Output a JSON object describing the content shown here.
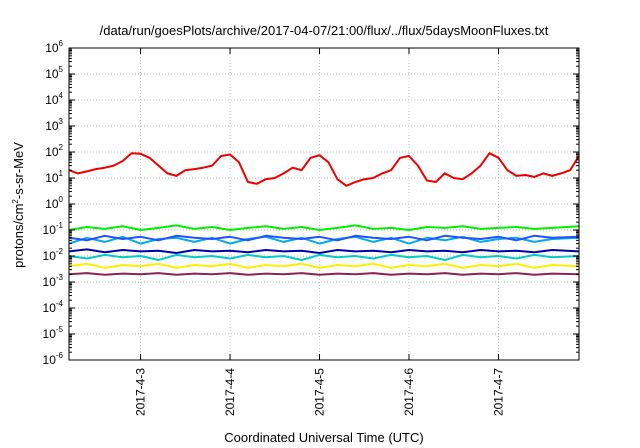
{
  "chart_data": {
    "type": "line",
    "title": "/data/run/goesPlots/archive/2017-04-07/21:00/flux/../flux/5daysMoonFluxes.txt",
    "xlabel": "Coordinated Universal Time (UTC)",
    "ylabel": {
      "prefix": "protons/cm",
      "superscript": "2",
      "suffix": "-s-sr-MeV"
    },
    "yscale": "log",
    "ylim_exponent": [
      -6,
      6
    ],
    "y_ticks": [
      {
        "base": "10",
        "exp": "-6",
        "value": -6
      },
      {
        "base": "10",
        "exp": "-5",
        "value": -5
      },
      {
        "base": "10",
        "exp": "-4",
        "value": -4
      },
      {
        "base": "10",
        "exp": "-3",
        "value": -3
      },
      {
        "base": "10",
        "exp": "-2",
        "value": -2
      },
      {
        "base": "10",
        "exp": "-1",
        "value": -1
      },
      {
        "base": "10",
        "exp": "0",
        "value": 0
      },
      {
        "base": "10",
        "exp": "1",
        "value": 1
      },
      {
        "base": "10",
        "exp": "2",
        "value": 2
      },
      {
        "base": "10",
        "exp": "3",
        "value": 3
      },
      {
        "base": "10",
        "exp": "4",
        "value": 4
      },
      {
        "base": "10",
        "exp": "5",
        "value": 5
      },
      {
        "base": "10",
        "exp": "6",
        "value": 6
      }
    ],
    "x_ticks": [
      {
        "label": "2017-4-3",
        "day": 3
      },
      {
        "label": "2017-4-4",
        "day": 4
      },
      {
        "label": "2017-4-5",
        "day": 5
      },
      {
        "label": "2017-4-6",
        "day": 6
      },
      {
        "label": "2017-4-7",
        "day": 7
      }
    ],
    "xlim_day": [
      2.2,
      7.9
    ],
    "grid": true,
    "series": [
      {
        "color": "#ee0000",
        "points": [
          [
            2.2,
            20
          ],
          [
            2.3,
            15
          ],
          [
            2.4,
            18
          ],
          [
            2.5,
            22
          ],
          [
            2.6,
            25
          ],
          [
            2.7,
            30
          ],
          [
            2.8,
            45
          ],
          [
            2.9,
            90
          ],
          [
            3.0,
            85
          ],
          [
            3.1,
            60
          ],
          [
            3.2,
            30
          ],
          [
            3.3,
            15
          ],
          [
            3.4,
            12
          ],
          [
            3.5,
            20
          ],
          [
            3.6,
            22
          ],
          [
            3.7,
            25
          ],
          [
            3.8,
            30
          ],
          [
            3.9,
            70
          ],
          [
            4.0,
            80
          ],
          [
            4.1,
            40
          ],
          [
            4.2,
            7
          ],
          [
            4.3,
            6
          ],
          [
            4.4,
            9
          ],
          [
            4.5,
            10
          ],
          [
            4.6,
            15
          ],
          [
            4.7,
            25
          ],
          [
            4.8,
            20
          ],
          [
            4.9,
            60
          ],
          [
            5.0,
            75
          ],
          [
            5.1,
            40
          ],
          [
            5.2,
            9
          ],
          [
            5.3,
            5
          ],
          [
            5.4,
            7
          ],
          [
            5.5,
            9
          ],
          [
            5.6,
            10
          ],
          [
            5.7,
            15
          ],
          [
            5.8,
            20
          ],
          [
            5.9,
            60
          ],
          [
            6.0,
            70
          ],
          [
            6.1,
            30
          ],
          [
            6.2,
            8
          ],
          [
            6.3,
            7
          ],
          [
            6.4,
            15
          ],
          [
            6.5,
            10
          ],
          [
            6.6,
            9
          ],
          [
            6.7,
            15
          ],
          [
            6.8,
            30
          ],
          [
            6.9,
            90
          ],
          [
            7.0,
            60
          ],
          [
            7.1,
            20
          ],
          [
            7.2,
            12
          ],
          [
            7.3,
            13
          ],
          [
            7.4,
            11
          ],
          [
            7.5,
            15
          ],
          [
            7.6,
            12
          ],
          [
            7.7,
            15
          ],
          [
            7.8,
            20
          ],
          [
            7.9,
            70
          ]
        ]
      },
      {
        "color": "#00ee00",
        "points": [
          [
            2.2,
            0.1
          ],
          [
            2.4,
            0.13
          ],
          [
            2.6,
            0.11
          ],
          [
            2.8,
            0.14
          ],
          [
            3.0,
            0.1
          ],
          [
            3.2,
            0.12
          ],
          [
            3.4,
            0.15
          ],
          [
            3.6,
            0.11
          ],
          [
            3.8,
            0.13
          ],
          [
            4.0,
            0.1
          ],
          [
            4.2,
            0.12
          ],
          [
            4.4,
            0.14
          ],
          [
            4.6,
            0.11
          ],
          [
            4.8,
            0.13
          ],
          [
            5.0,
            0.1
          ],
          [
            5.2,
            0.12
          ],
          [
            5.4,
            0.15
          ],
          [
            5.6,
            0.11
          ],
          [
            5.8,
            0.12
          ],
          [
            6.0,
            0.1
          ],
          [
            6.2,
            0.13
          ],
          [
            6.4,
            0.12
          ],
          [
            6.6,
            0.14
          ],
          [
            6.8,
            0.11
          ],
          [
            7.0,
            0.12
          ],
          [
            7.2,
            0.13
          ],
          [
            7.4,
            0.11
          ],
          [
            7.6,
            0.12
          ],
          [
            7.9,
            0.14
          ]
        ]
      },
      {
        "color": "#00aaee",
        "points": [
          [
            2.2,
            0.03
          ],
          [
            2.4,
            0.05
          ],
          [
            2.6,
            0.035
          ],
          [
            2.8,
            0.055
          ],
          [
            3.0,
            0.03
          ],
          [
            3.2,
            0.045
          ],
          [
            3.4,
            0.05
          ],
          [
            3.6,
            0.035
          ],
          [
            3.8,
            0.05
          ],
          [
            4.0,
            0.03
          ],
          [
            4.2,
            0.045
          ],
          [
            4.4,
            0.055
          ],
          [
            4.6,
            0.035
          ],
          [
            4.8,
            0.05
          ],
          [
            5.0,
            0.03
          ],
          [
            5.2,
            0.045
          ],
          [
            5.4,
            0.055
          ],
          [
            5.6,
            0.035
          ],
          [
            5.8,
            0.05
          ],
          [
            6.0,
            0.03
          ],
          [
            6.2,
            0.05
          ],
          [
            6.4,
            0.04
          ],
          [
            6.6,
            0.055
          ],
          [
            6.8,
            0.035
          ],
          [
            7.0,
            0.045
          ],
          [
            7.2,
            0.05
          ],
          [
            7.4,
            0.035
          ],
          [
            7.6,
            0.045
          ],
          [
            7.9,
            0.05
          ]
        ]
      },
      {
        "color": "#2050ff",
        "points": [
          [
            2.2,
            0.05
          ],
          [
            2.4,
            0.04
          ],
          [
            2.6,
            0.06
          ],
          [
            2.8,
            0.045
          ],
          [
            3.0,
            0.055
          ],
          [
            3.2,
            0.04
          ],
          [
            3.4,
            0.06
          ],
          [
            3.6,
            0.05
          ],
          [
            3.8,
            0.045
          ],
          [
            4.0,
            0.055
          ],
          [
            4.2,
            0.04
          ],
          [
            4.4,
            0.06
          ],
          [
            4.6,
            0.05
          ],
          [
            4.8,
            0.045
          ],
          [
            5.0,
            0.055
          ],
          [
            5.2,
            0.04
          ],
          [
            5.4,
            0.06
          ],
          [
            5.6,
            0.05
          ],
          [
            5.8,
            0.045
          ],
          [
            6.0,
            0.055
          ],
          [
            6.2,
            0.04
          ],
          [
            6.4,
            0.06
          ],
          [
            6.6,
            0.05
          ],
          [
            6.8,
            0.045
          ],
          [
            7.0,
            0.055
          ],
          [
            7.2,
            0.04
          ],
          [
            7.4,
            0.06
          ],
          [
            7.6,
            0.05
          ],
          [
            7.9,
            0.055
          ]
        ]
      },
      {
        "color": "#0000aa",
        "points": [
          [
            2.2,
            0.015
          ],
          [
            2.4,
            0.018
          ],
          [
            2.6,
            0.014
          ],
          [
            2.8,
            0.017
          ],
          [
            3.0,
            0.015
          ],
          [
            3.2,
            0.016
          ],
          [
            3.4,
            0.013
          ],
          [
            3.6,
            0.017
          ],
          [
            3.8,
            0.015
          ],
          [
            4.0,
            0.016
          ],
          [
            4.2,
            0.014
          ],
          [
            4.4,
            0.017
          ],
          [
            4.6,
            0.015
          ],
          [
            4.8,
            0.016
          ],
          [
            5.0,
            0.013
          ],
          [
            5.2,
            0.017
          ],
          [
            5.4,
            0.015
          ],
          [
            5.6,
            0.016
          ],
          [
            5.8,
            0.014
          ],
          [
            6.0,
            0.017
          ],
          [
            6.2,
            0.015
          ],
          [
            6.4,
            0.016
          ],
          [
            6.6,
            0.014
          ],
          [
            6.8,
            0.017
          ],
          [
            7.0,
            0.015
          ],
          [
            7.2,
            0.016
          ],
          [
            7.4,
            0.014
          ],
          [
            7.6,
            0.017
          ],
          [
            7.9,
            0.015
          ]
        ]
      },
      {
        "color": "#00cccc",
        "points": [
          [
            2.2,
            0.01
          ],
          [
            2.4,
            0.008
          ],
          [
            2.6,
            0.011
          ],
          [
            2.8,
            0.009
          ],
          [
            3.0,
            0.01
          ],
          [
            3.2,
            0.007
          ],
          [
            3.4,
            0.011
          ],
          [
            3.6,
            0.009
          ],
          [
            3.8,
            0.01
          ],
          [
            4.0,
            0.008
          ],
          [
            4.2,
            0.011
          ],
          [
            4.4,
            0.009
          ],
          [
            4.6,
            0.01
          ],
          [
            4.8,
            0.007
          ],
          [
            5.0,
            0.011
          ],
          [
            5.2,
            0.009
          ],
          [
            5.4,
            0.01
          ],
          [
            5.6,
            0.008
          ],
          [
            5.8,
            0.011
          ],
          [
            6.0,
            0.009
          ],
          [
            6.2,
            0.01
          ],
          [
            6.4,
            0.007
          ],
          [
            6.6,
            0.011
          ],
          [
            6.8,
            0.009
          ],
          [
            7.0,
            0.01
          ],
          [
            7.2,
            0.008
          ],
          [
            7.4,
            0.011
          ],
          [
            7.6,
            0.009
          ],
          [
            7.9,
            0.01
          ]
        ]
      },
      {
        "color": "#ffee00",
        "points": [
          [
            2.2,
            0.004
          ],
          [
            2.4,
            0.005
          ],
          [
            2.6,
            0.0035
          ],
          [
            2.8,
            0.0045
          ],
          [
            3.0,
            0.004
          ],
          [
            3.2,
            0.005
          ],
          [
            3.4,
            0.0035
          ],
          [
            3.6,
            0.0045
          ],
          [
            3.8,
            0.004
          ],
          [
            4.0,
            0.005
          ],
          [
            4.2,
            0.0035
          ],
          [
            4.4,
            0.0045
          ],
          [
            4.6,
            0.004
          ],
          [
            4.8,
            0.005
          ],
          [
            5.0,
            0.0035
          ],
          [
            5.2,
            0.0045
          ],
          [
            5.4,
            0.004
          ],
          [
            5.6,
            0.005
          ],
          [
            5.8,
            0.0035
          ],
          [
            6.0,
            0.0045
          ],
          [
            6.2,
            0.004
          ],
          [
            6.4,
            0.005
          ],
          [
            6.6,
            0.0035
          ],
          [
            6.8,
            0.0045
          ],
          [
            7.0,
            0.004
          ],
          [
            7.2,
            0.005
          ],
          [
            7.4,
            0.0035
          ],
          [
            7.6,
            0.0045
          ],
          [
            7.9,
            0.004
          ]
        ]
      },
      {
        "color": "#8b2252",
        "points": [
          [
            2.2,
            0.002
          ],
          [
            2.4,
            0.0022
          ],
          [
            2.6,
            0.0019
          ],
          [
            2.8,
            0.0021
          ],
          [
            3.0,
            0.002
          ],
          [
            3.2,
            0.0022
          ],
          [
            3.4,
            0.0019
          ],
          [
            3.6,
            0.0021
          ],
          [
            3.8,
            0.002
          ],
          [
            4.0,
            0.0022
          ],
          [
            4.2,
            0.0019
          ],
          [
            4.4,
            0.0021
          ],
          [
            4.6,
            0.002
          ],
          [
            4.8,
            0.0022
          ],
          [
            5.0,
            0.0019
          ],
          [
            5.2,
            0.0021
          ],
          [
            5.4,
            0.002
          ],
          [
            5.6,
            0.0022
          ],
          [
            5.8,
            0.0019
          ],
          [
            6.0,
            0.0021
          ],
          [
            6.2,
            0.002
          ],
          [
            6.4,
            0.0022
          ],
          [
            6.6,
            0.0019
          ],
          [
            6.8,
            0.0021
          ],
          [
            7.0,
            0.002
          ],
          [
            7.2,
            0.0022
          ],
          [
            7.4,
            0.0019
          ],
          [
            7.6,
            0.0021
          ],
          [
            7.9,
            0.002
          ]
        ]
      }
    ]
  }
}
